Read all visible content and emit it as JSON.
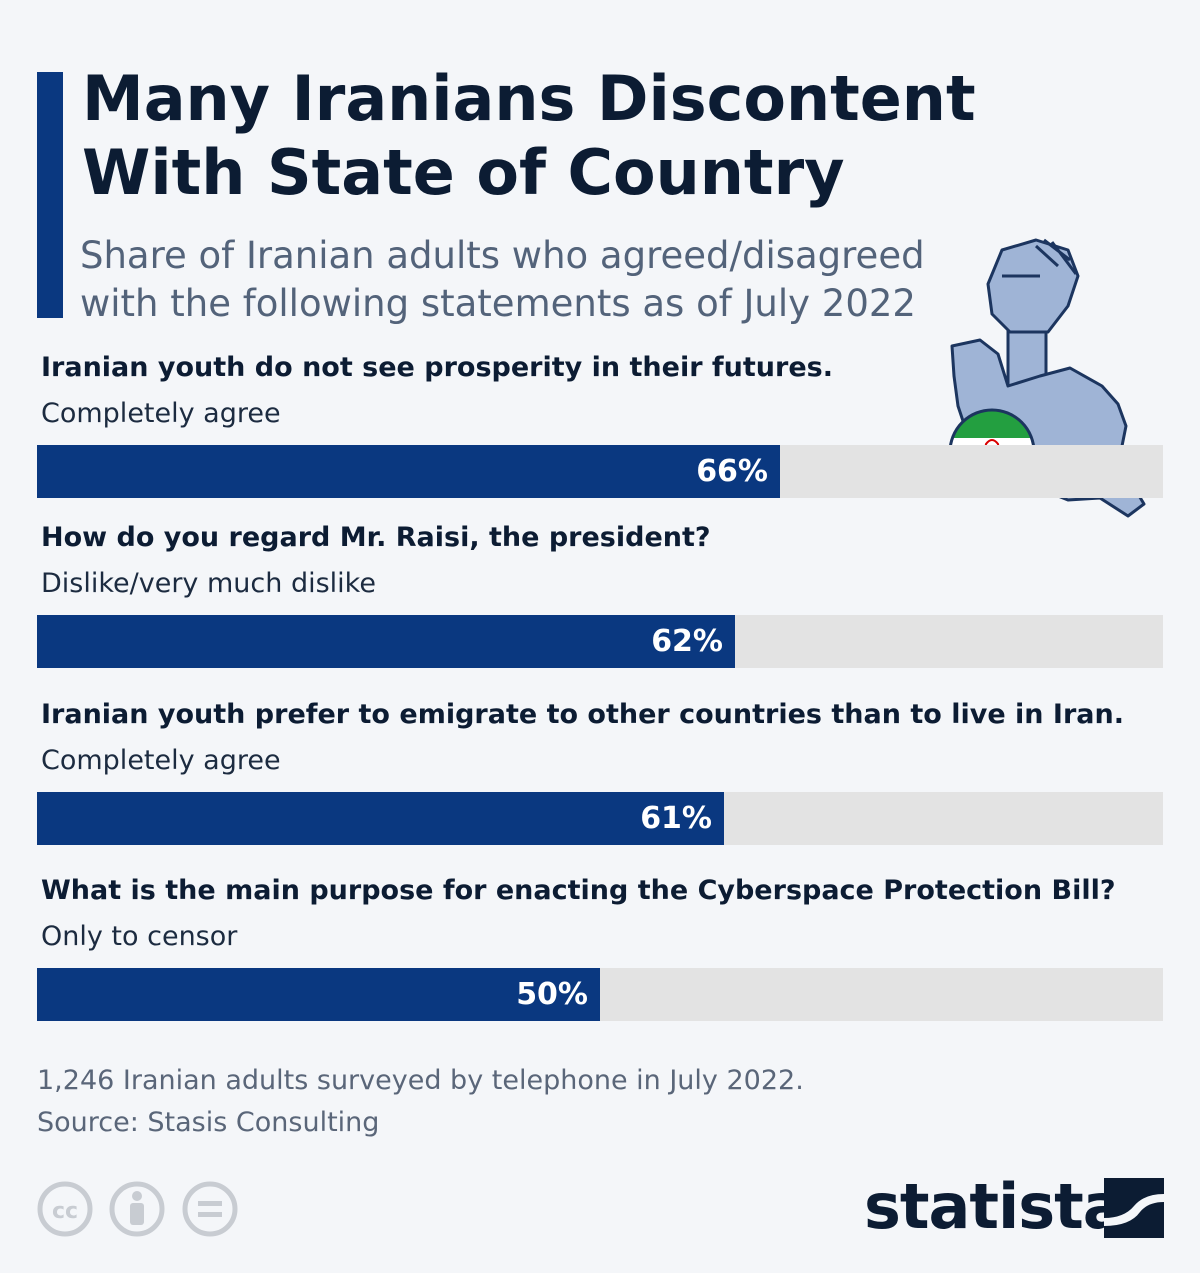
{
  "chart_data": {
    "type": "bar",
    "orientation": "horizontal",
    "title": "Many Iranians Discontent With State of Country",
    "subtitle": "Share of Iranian adults who agreed/disagreed with the following statements as of July 2022",
    "xlim": [
      0,
      100
    ],
    "unit": "%",
    "items": [
      {
        "question": "Iranian youth do not see prosperity in their futures.",
        "answer": "Completely agree",
        "value": 66,
        "label": "66%"
      },
      {
        "question": "How do you regard Mr. Raisi, the president?",
        "answer": "Dislike/very much dislike",
        "value": 62,
        "label": "62%"
      },
      {
        "question": "Iranian youth prefer to emigrate to other countries than to live in Iran.",
        "answer": "Completely agree",
        "value": 61,
        "label": "61%"
      },
      {
        "question": "What is the main purpose for enacting the Cyberspace Protection Bill?",
        "answer": "Only to censor",
        "value": 50,
        "label": "50%"
      }
    ],
    "colors": {
      "bar": "#0a3880",
      "track": "#e3e3e3",
      "accent": "#0a3880"
    }
  },
  "footer": {
    "note": "1,246 Iranian adults surveyed by telephone in July 2022.",
    "source": "Source: Stasis Consulting"
  },
  "logo": {
    "text": "statista"
  },
  "icons": [
    "cc-icon",
    "attribution-icon",
    "no-derivatives-icon",
    "fist-map-icon",
    "iran-flag-icon",
    "statista-logo-icon"
  ]
}
